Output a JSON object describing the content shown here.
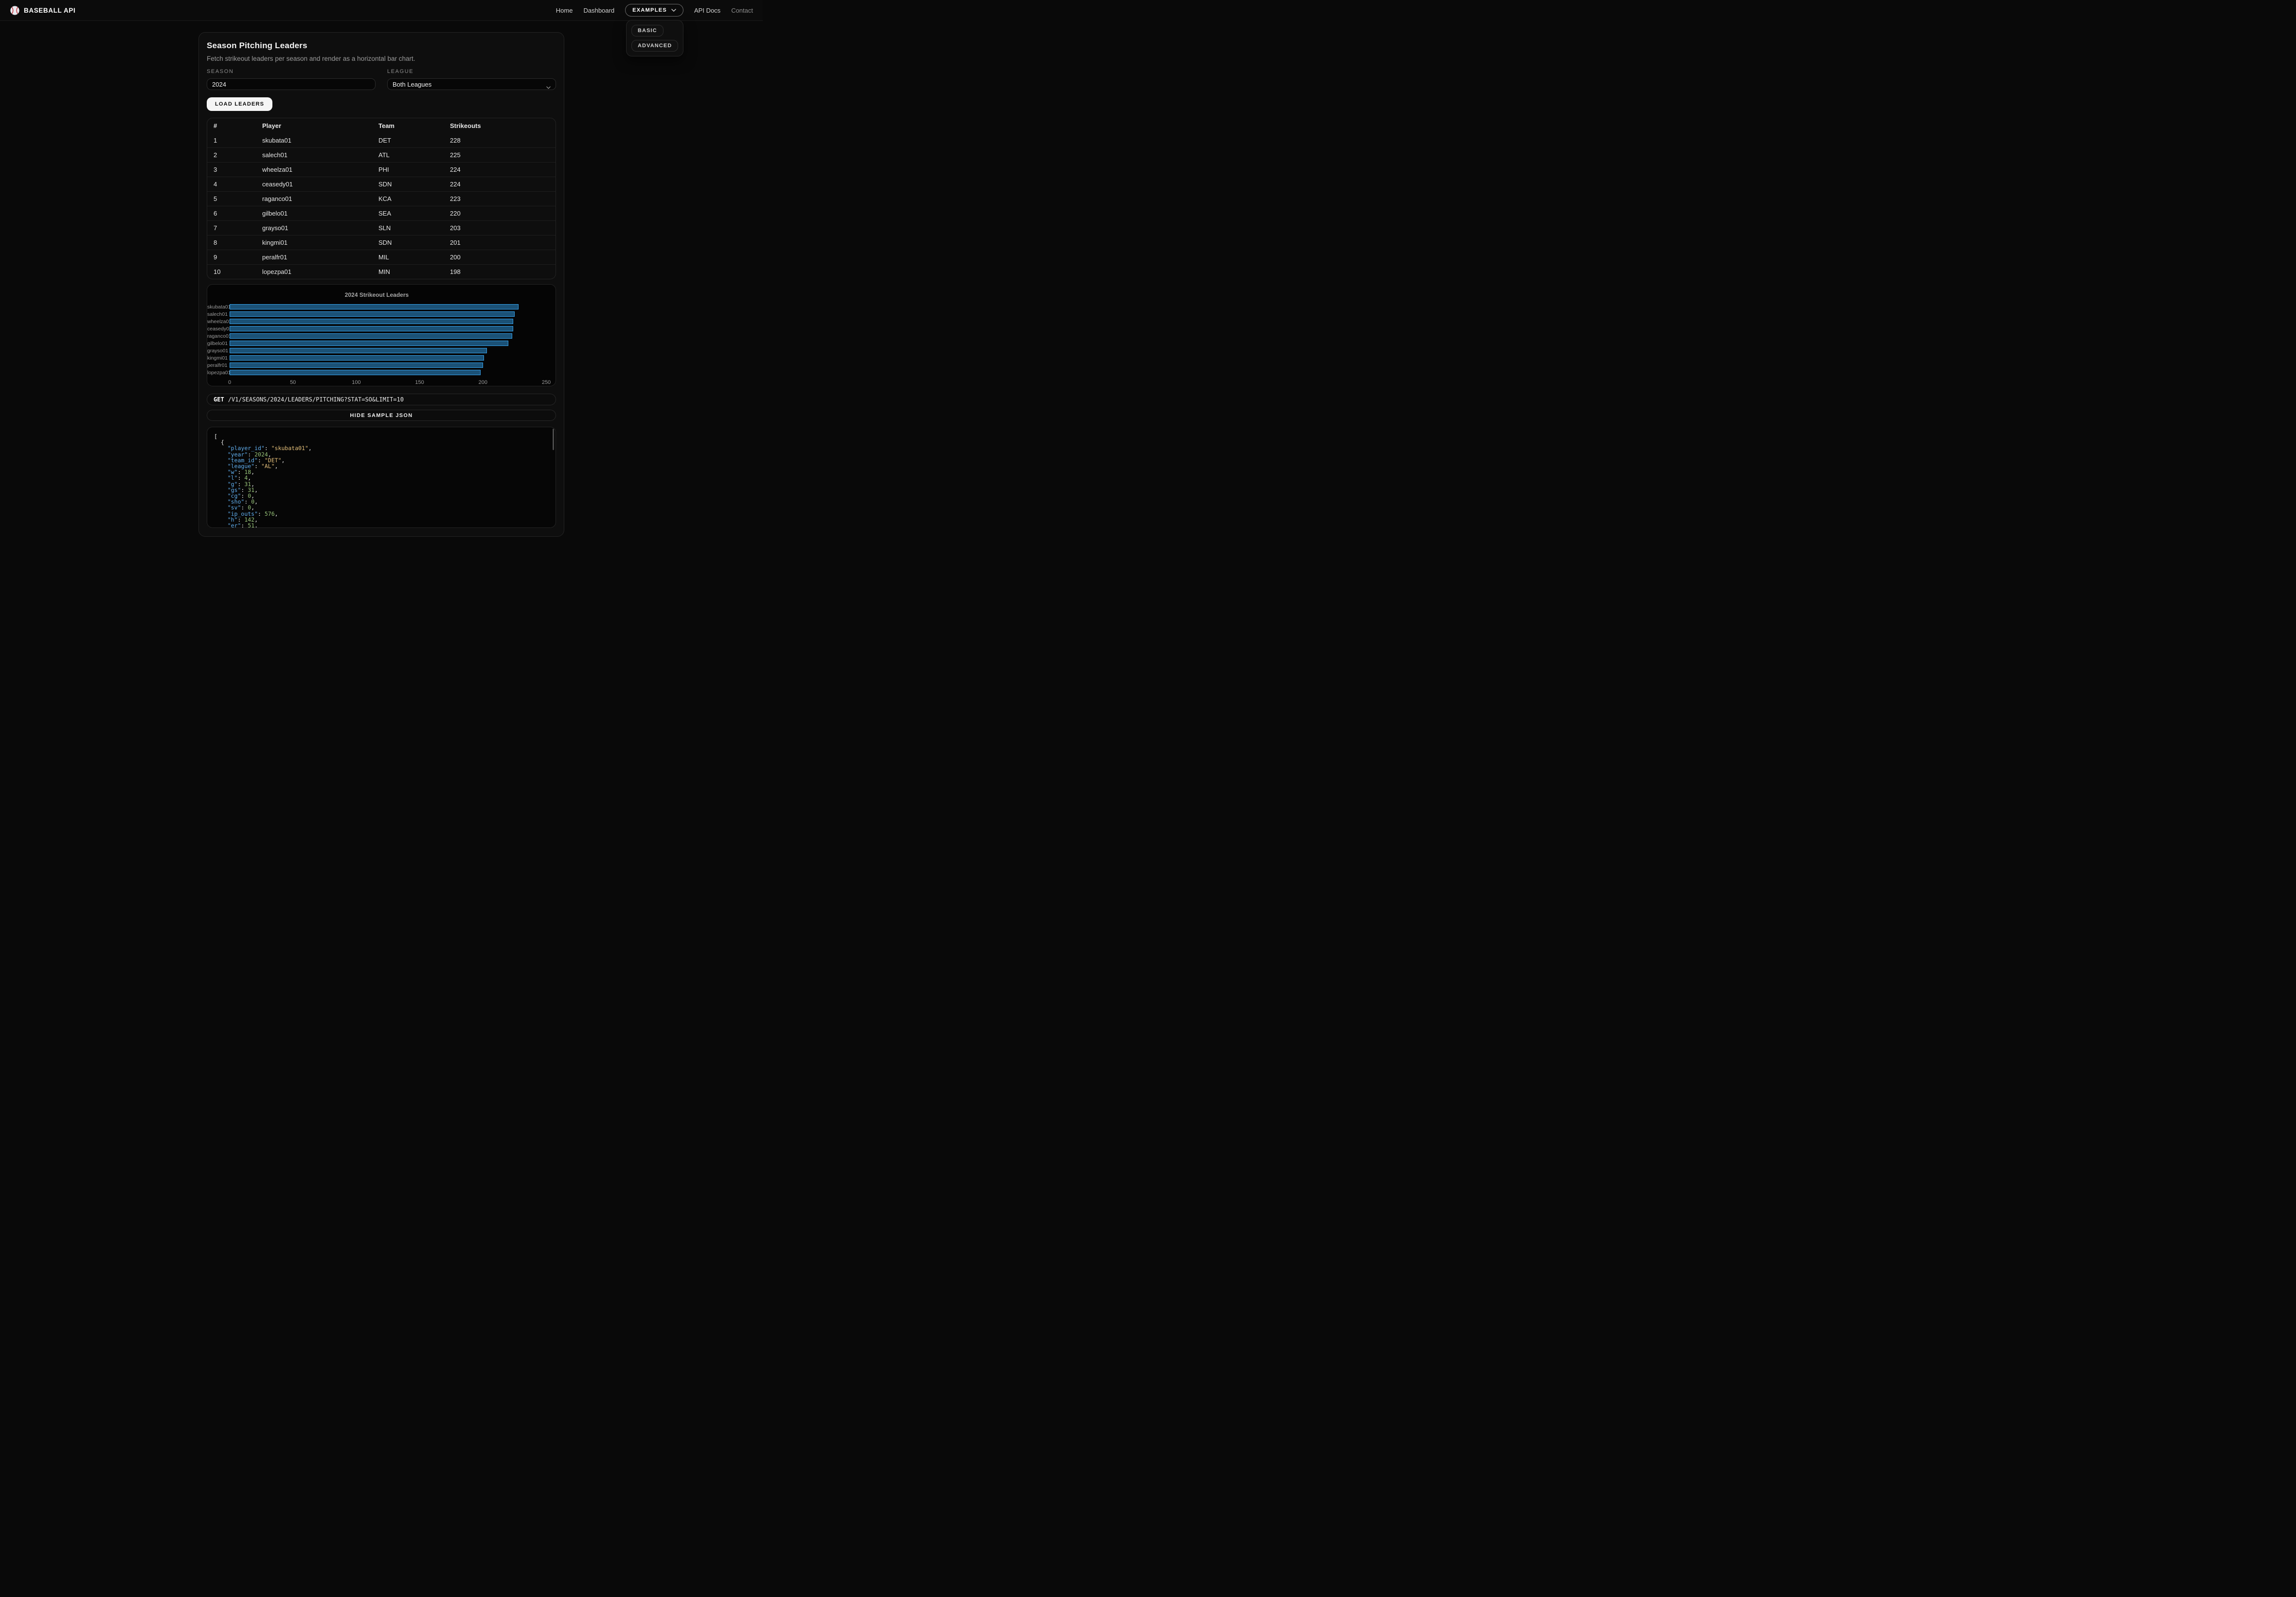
{
  "colors": {
    "bar_fill": "#1b5176",
    "bar_border": "#36a2eb",
    "json_key": "#61afef",
    "json_string": "#e5c07b",
    "json_number": "#98c379",
    "page_bg": "#090909",
    "card_bg": "#0e0e0e"
  },
  "nav": {
    "brand": "BASEBALL API",
    "links": [
      "Home",
      "Dashboard"
    ],
    "examples": "EXAMPLES",
    "links_after": [
      "API Docs",
      "Contact"
    ],
    "dropdown": [
      "BASIC",
      "ADVANCED"
    ]
  },
  "panel": {
    "title": "Season Pitching Leaders",
    "subtitle": "Fetch strikeout leaders per season and render as a horizontal bar chart.",
    "season_label": "SEASON",
    "season_value": "2024",
    "league_label": "LEAGUE",
    "league_value": "Both Leagues",
    "load_button": "LOAD LEADERS"
  },
  "table": {
    "headers": [
      "#",
      "Player",
      "Team",
      "Strikeouts"
    ],
    "rows": [
      [
        "1",
        "skubata01",
        "DET",
        "228"
      ],
      [
        "2",
        "salech01",
        "ATL",
        "225"
      ],
      [
        "3",
        "wheelza01",
        "PHI",
        "224"
      ],
      [
        "4",
        "ceasedy01",
        "SDN",
        "224"
      ],
      [
        "5",
        "raganco01",
        "KCA",
        "223"
      ],
      [
        "6",
        "gilbelo01",
        "SEA",
        "220"
      ],
      [
        "7",
        "grayso01",
        "SLN",
        "203"
      ],
      [
        "8",
        "kingmi01",
        "SDN",
        "201"
      ],
      [
        "9",
        "peralfr01",
        "MIL",
        "200"
      ],
      [
        "10",
        "lopezpa01",
        "MIN",
        "198"
      ]
    ]
  },
  "chart_data": {
    "type": "bar",
    "orientation": "horizontal",
    "title": "2024 Strikeout Leaders",
    "categories": [
      "skubata01",
      "salech01",
      "wheelza01",
      "ceasedy01",
      "raganco01",
      "gilbelo01",
      "grayso01",
      "kingmi01",
      "peralfr01",
      "lopezpa01"
    ],
    "values": [
      228,
      225,
      224,
      224,
      223,
      220,
      203,
      201,
      200,
      198
    ],
    "xlabel": "",
    "ylabel": "",
    "xlim": [
      0,
      250
    ],
    "xticks": [
      0,
      50,
      100,
      150,
      200,
      250
    ],
    "grid": false,
    "legend": false
  },
  "request": {
    "method": "GET",
    "path": "/V1/SEASONS/2024/LEADERS/PITCHING?STAT=SO&LIMIT=10"
  },
  "toggle_button": "HIDE SAMPLE JSON",
  "sample_json": {
    "open_bracket": "[",
    "open_brace": "{",
    "fields": [
      {
        "key": "player_id",
        "value": "skubata01",
        "type": "string"
      },
      {
        "key": "year",
        "value": "2024",
        "type": "number"
      },
      {
        "key": "team_id",
        "value": "DET",
        "type": "string"
      },
      {
        "key": "league",
        "value": "AL",
        "type": "string"
      },
      {
        "key": "w",
        "value": "18",
        "type": "number"
      },
      {
        "key": "l",
        "value": "4",
        "type": "number"
      },
      {
        "key": "g",
        "value": "31",
        "type": "number"
      },
      {
        "key": "gs",
        "value": "31",
        "type": "number"
      },
      {
        "key": "cg",
        "value": "0",
        "type": "number"
      },
      {
        "key": "sho",
        "value": "0",
        "type": "number"
      },
      {
        "key": "sv",
        "value": "0",
        "type": "number"
      },
      {
        "key": "ip_outs",
        "value": "576",
        "type": "number"
      },
      {
        "key": "h",
        "value": "142",
        "type": "number"
      },
      {
        "key": "er",
        "value": "51",
        "type": "number"
      }
    ]
  }
}
